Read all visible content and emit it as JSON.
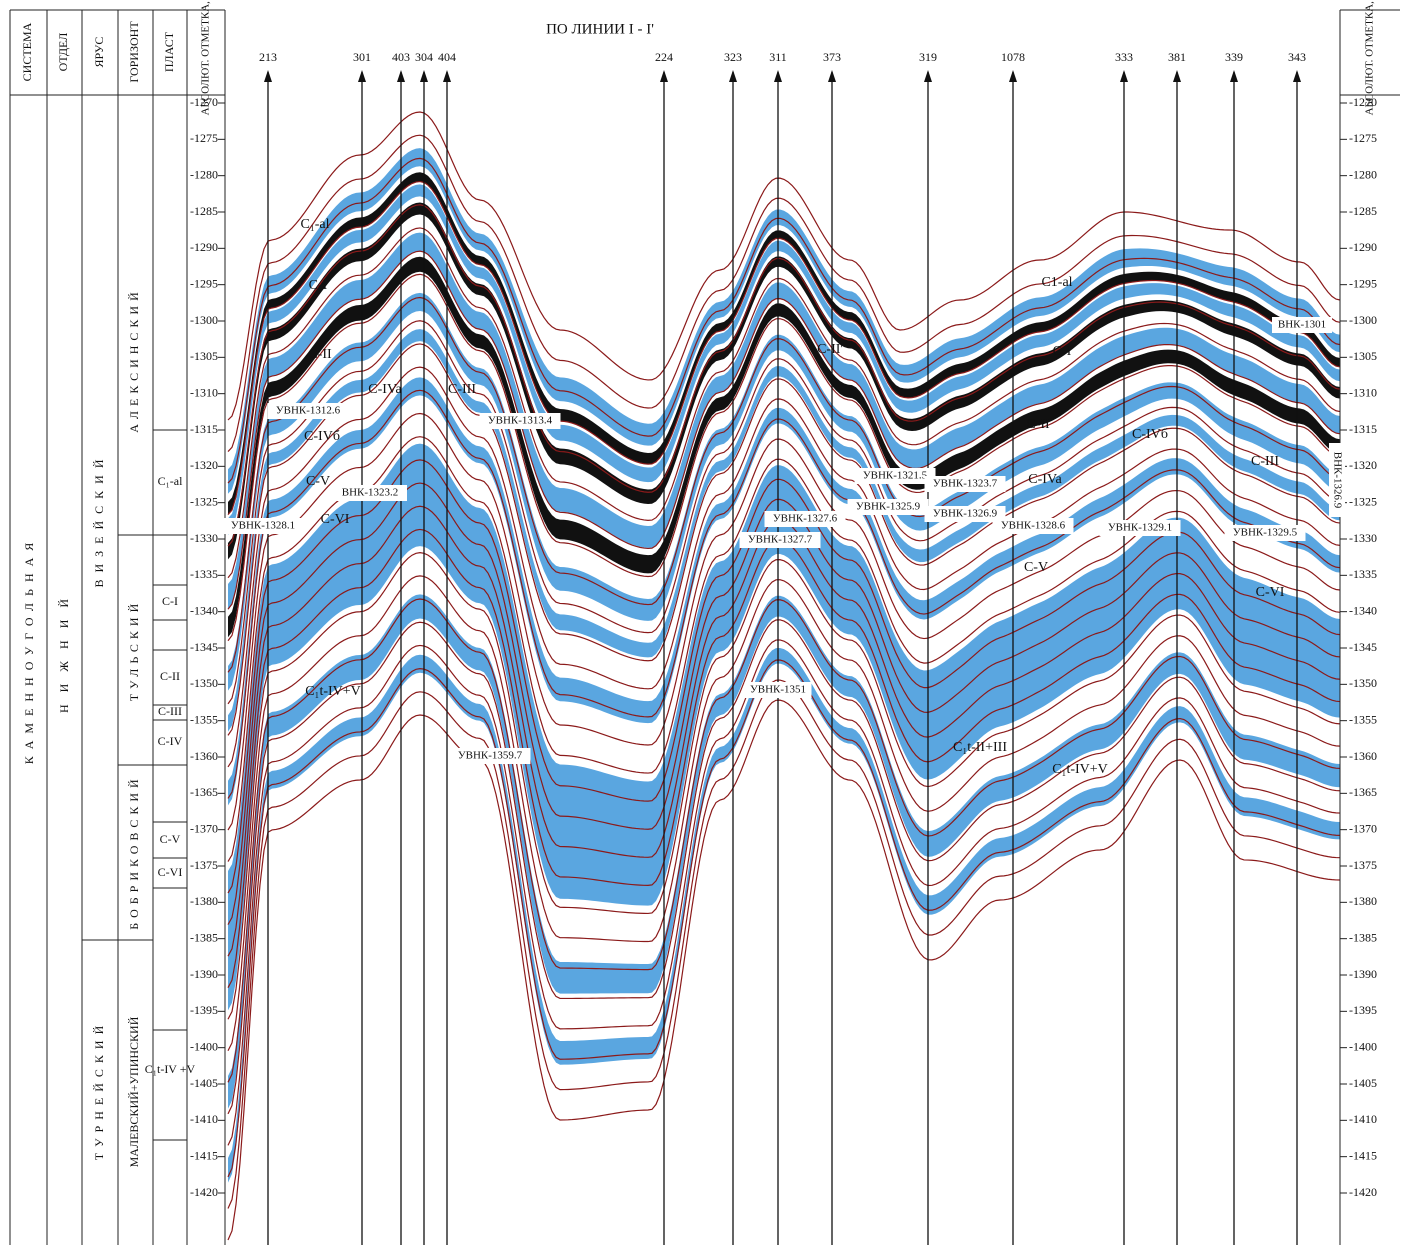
{
  "header": {
    "title": "ПО ЛИНИИ I - I'"
  },
  "left_table": {
    "headers": [
      "СИСТЕМА",
      "ОТДЕЛ",
      "ЯРУС",
      "ГОРИЗОНТ",
      "ПЛАСТ"
    ],
    "system": "КАМЕННОУГОЛЬНАЯ",
    "division": "НИЖНИЙ",
    "stages": [
      "ВИЗЕЙСКИЙ",
      "ТУРНЕЙСКИЙ"
    ],
    "horizons": [
      "АЛЕКСИНСКИЙ",
      "ТУЛЬСКИЙ",
      "БОБРИКОВСКИЙ",
      "МАЛЕВСКИЙ+УПИНСКИЙ"
    ],
    "layers": [
      "C₁-al",
      "C-I",
      "C-II",
      "C-III",
      "C-IV",
      "C-V",
      "C-VI",
      "C₁t-IV +V"
    ]
  },
  "depth_scale": {
    "label_left": "АБСОЛЮТ. ОТМЕТКА, М",
    "label_right": "АБСОЛЮТ. ОТМЕТКА, М",
    "ticks": [
      -1270,
      -1275,
      -1280,
      -1285,
      -1290,
      -1295,
      -1300,
      -1305,
      -1310,
      -1315,
      -1320,
      -1325,
      -1330,
      -1335,
      -1340,
      -1345,
      -1350,
      -1355,
      -1360,
      -1365,
      -1370,
      -1375,
      -1380,
      -1385,
      -1390,
      -1395,
      -1400,
      -1405,
      -1410,
      -1415,
      -1420
    ]
  },
  "wells": [
    "213",
    "301",
    "403",
    "304",
    "404",
    "224",
    "323",
    "311",
    "373",
    "319",
    "1078",
    "333",
    "381",
    "339",
    "343"
  ],
  "section_labels": [
    "C₁-al",
    "C-I",
    "C-II",
    "C-IVa",
    "C-III",
    "УВНК-1312.6",
    "УВНК-1313.4",
    "C-IVб",
    "C-V",
    "ВНК-1323.2",
    "УВНК-1328.1",
    "C-VI",
    "C₁t-IV+V",
    "УВНК-1359.7",
    "УВНК-1351",
    "C-II'",
    "УВНК-1321.5",
    "УВНК-1323.7",
    "УВНК-1325.9",
    "УВНК-1326.9",
    "УВНК-1327.6",
    "УВНК-1327.7",
    "УВНК-1328.6",
    "УВНК-1329.1",
    "УВНК-1329.5",
    "ВНК-1301",
    "ВНК-1326.9",
    "C1-al",
    "C-I",
    "C-II",
    "C-IVб",
    "C-III",
    "C-IVa",
    "C-V",
    "C-VI",
    "C₁t-II+III",
    "C₁t-IV+V"
  ]
}
